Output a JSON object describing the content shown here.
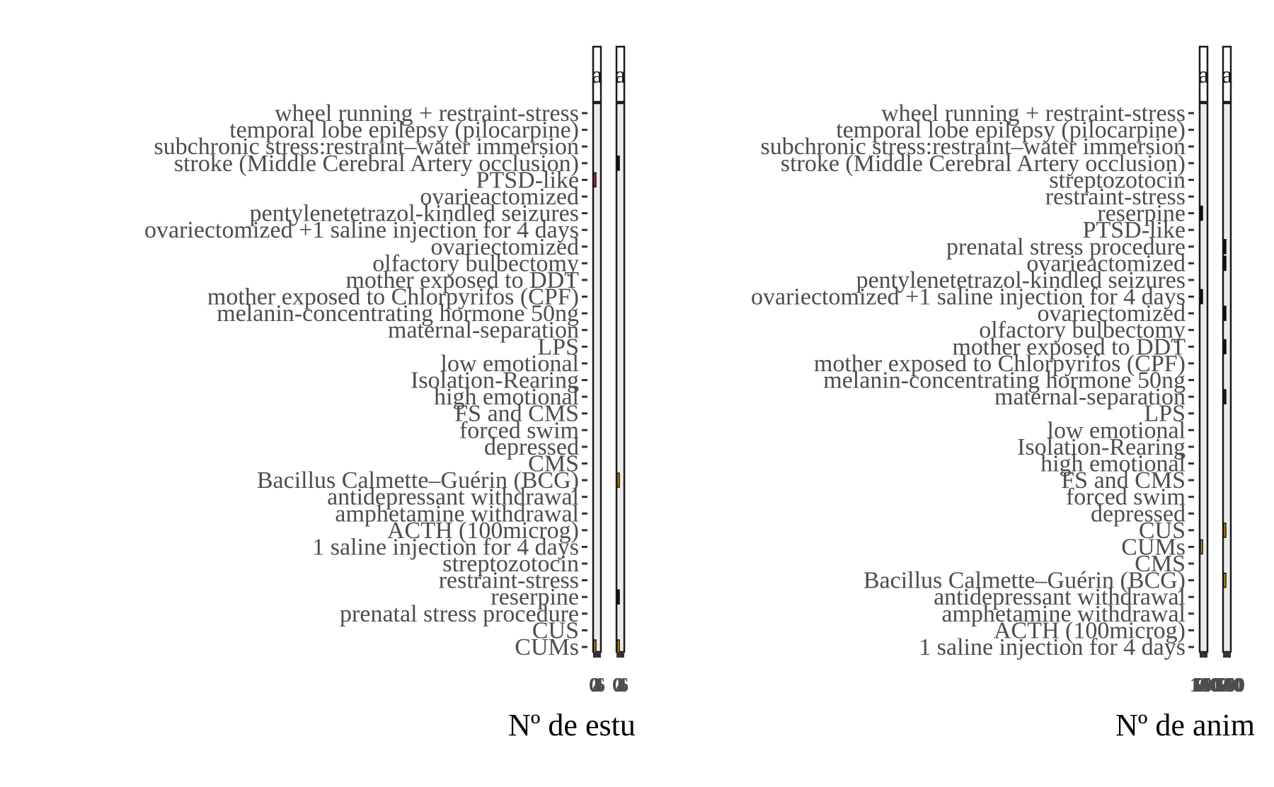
{
  "chart_data": [
    {
      "type": "bar",
      "orientation": "horizontal",
      "xlabel": "Nº de estu",
      "panels": [
        {
          "strip": "a",
          "ticks": [
            "0",
            "2",
            "4",
            "6"
          ],
          "values": [
            1,
            0,
            0,
            0,
            0,
            0,
            0,
            0,
            0,
            0,
            0,
            0,
            0,
            0,
            0,
            0,
            0,
            0,
            0,
            0,
            0,
            0,
            0,
            0,
            0,
            0,
            0,
            0,
            1,
            0,
            0,
            0,
            0
          ],
          "colors": [
            "#e69f00",
            "",
            "",
            "",
            "",
            "",
            "",
            "",
            "",
            "",
            "",
            "",
            "",
            "",
            "",
            "",
            "",
            "",
            "",
            "",
            "",
            "",
            "",
            "",
            "",
            "",
            "",
            "",
            "#d6336c",
            "",
            "",
            "",
            ""
          ]
        },
        {
          "strip": "a",
          "ticks": [
            "0",
            "2",
            "4",
            "6"
          ],
          "values": [
            1,
            0,
            0,
            1,
            0,
            0,
            0,
            0,
            0,
            0,
            1,
            0,
            0,
            0,
            0,
            0,
            0,
            0,
            0,
            0,
            0,
            0,
            0,
            0,
            0,
            0,
            0,
            0,
            0,
            1,
            0,
            0,
            0
          ],
          "colors": [
            "#e69f00",
            "",
            "",
            "#111111",
            "",
            "",
            "",
            "",
            "",
            "",
            "#e69f00",
            "",
            "",
            "",
            "",
            "",
            "",
            "",
            "",
            "",
            "",
            "",
            "",
            "",
            "",
            "",
            "",
            "",
            "",
            "#111111",
            "",
            "",
            ""
          ]
        }
      ],
      "categories": [
        "CUMs",
        "CUS",
        "prenatal stress procedure",
        "reserpine",
        "restraint-stress",
        "streptozotocin",
        "1 saline injection for 4 days",
        "ACTH (100microg)",
        "amphetamine withdrawal",
        "antidepressant withdrawal",
        "Bacillus Calmette–Guérin (BCG)",
        "CMS",
        "depressed",
        "forced swim",
        "FS and CMS",
        "high emotional",
        "Isolation-Rearing",
        "low emotional",
        "LPS",
        "maternal-separation",
        "melanin-concentrating hormone 50ng",
        "mother exposed to Chlorpyrifos (CPF)",
        "mother exposed to DDT",
        "olfactory bulbectomy",
        "ovariectomized",
        "ovariectomized +1 saline injection for 4 days",
        "pentylenetetrazol-kindled seizures",
        "ovarieactomized",
        "PTSD-like",
        "stroke (Middle Cerebral Artery occlusion)",
        "subchronic stress:restraint–water immersion",
        "temporal lobe epilepsy (pilocarpine)",
        "wheel running + restraint-stress"
      ]
    },
    {
      "type": "bar",
      "orientation": "horizontal",
      "xlabel": "Nº de anim",
      "panels": [
        {
          "strip": "a",
          "ticks": [
            "0",
            "50",
            "100",
            "150"
          ],
          "values": [
            0,
            0,
            0,
            0,
            0,
            0,
            30,
            0,
            0,
            0,
            0,
            0,
            0,
            0,
            0,
            0,
            0,
            0,
            0,
            0,
            0,
            20,
            0,
            0,
            0,
            0,
            20,
            0,
            0,
            0,
            0,
            0,
            0
          ],
          "colors": [
            "",
            "",
            "",
            "",
            "",
            "",
            "#e69f00",
            "",
            "",
            "",
            "",
            "",
            "",
            "",
            "",
            "",
            "",
            "",
            "",
            "",
            "",
            "#111111",
            "",
            "",
            "",
            "",
            "#111111",
            "",
            "",
            "",
            "",
            "",
            ""
          ]
        },
        {
          "strip": "a",
          "ticks": [
            "0",
            "50",
            "100",
            "150"
          ],
          "values": [
            0,
            0,
            0,
            0,
            30,
            0,
            0,
            30,
            0,
            0,
            0,
            0,
            0,
            0,
            0,
            30,
            0,
            0,
            20,
            0,
            10,
            0,
            0,
            20,
            20,
            0,
            0,
            0,
            0,
            0,
            0,
            0,
            0
          ],
          "colors": [
            "",
            "",
            "",
            "",
            "#e6b800",
            "",
            "",
            "#e69f00",
            "",
            "",
            "",
            "",
            "",
            "",
            "",
            "#3b1a0a",
            "",
            "",
            "#111111",
            "",
            "#111111",
            "",
            "",
            "#111111",
            "#111111",
            "",
            "",
            "",
            "",
            "",
            "",
            "",
            ""
          ]
        }
      ],
      "categories": [
        "1 saline injection for 4 days",
        "ACTH (100microg)",
        "amphetamine withdrawal",
        "antidepressant withdrawal",
        "Bacillus Calmette–Guérin (BCG)",
        "CMS",
        "CUMs",
        "CUS",
        "depressed",
        "forced swim",
        "FS and CMS",
        "high emotional",
        "Isolation-Rearing",
        "low emotional",
        "LPS",
        "maternal-separation",
        "melanin-concentrating hormone 50ng",
        "mother exposed to Chlorpyrifos (CPF)",
        "mother exposed to DDT",
        "olfactory bulbectomy",
        "ovariectomized",
        "ovariectomized +1 saline injection for 4 days",
        "pentylenetetrazol-kindled seizures",
        "ovarieactomized",
        "prenatal stress procedure",
        "PTSD-like",
        "reserpine",
        "restraint-stress",
        "streptozotocin",
        "stroke (Middle Cerebral Artery occlusion)",
        "subchronic stress:restraint–water immersion",
        "temporal lobe epilepsy (pilocarpine)",
        "wheel running + restraint-stress"
      ]
    }
  ]
}
